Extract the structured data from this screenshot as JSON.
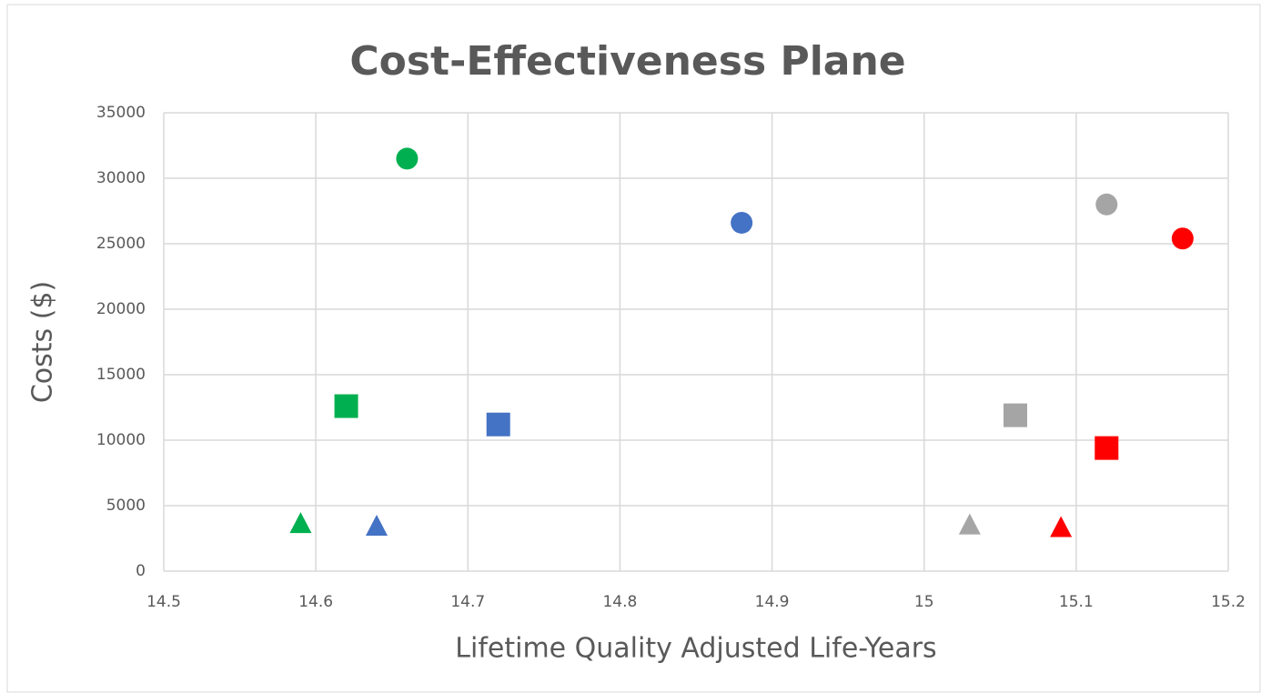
{
  "chart_data": {
    "type": "scatter",
    "title": "Cost-Effectiveness Plane",
    "x_label": "Lifetime Quality Adjusted Life-Years",
    "y_label": "Costs ($)",
    "xlim": [
      14.5,
      15.2
    ],
    "xticks": [
      14.5,
      14.6,
      14.7,
      14.8,
      14.9,
      15,
      15.1,
      15.2
    ],
    "ylim": [
      0,
      35000
    ],
    "yticks": [
      0,
      5000,
      10000,
      15000,
      20000,
      25000,
      30000,
      35000
    ],
    "grid": true,
    "series": [
      {
        "color": "#00b050",
        "markers": [
          "circle",
          "square",
          "triangle"
        ],
        "x": [
          14.66,
          14.62,
          14.59
        ],
        "values": [
          31500,
          12600,
          3600
        ]
      },
      {
        "color": "#4472c4",
        "markers": [
          "circle",
          "square",
          "triangle"
        ],
        "x": [
          14.88,
          14.72,
          14.64
        ],
        "values": [
          26600,
          11200,
          3400
        ]
      },
      {
        "color": "#a5a5a5",
        "markers": [
          "circle",
          "square",
          "triangle"
        ],
        "x": [
          15.12,
          15.06,
          15.03
        ],
        "values": [
          28000,
          11900,
          3500
        ]
      },
      {
        "color": "#ff0000",
        "markers": [
          "circle",
          "square",
          "triangle"
        ],
        "x": [
          15.17,
          15.12,
          15.09
        ],
        "values": [
          25400,
          9400,
          3300
        ]
      }
    ]
  }
}
